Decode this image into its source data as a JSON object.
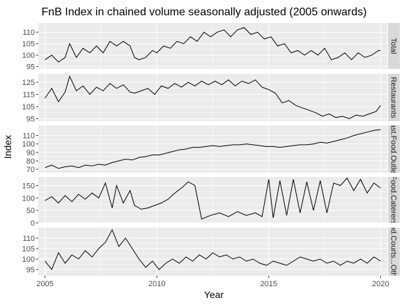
{
  "chart_data": {
    "type": "line",
    "title": "FnB Index in chained volume seasonally adjusted (2005 onwards)",
    "xlabel": "Year",
    "ylabel": "Index",
    "xlim": [
      2004.7,
      2020.3
    ],
    "x_ticks": [
      2005,
      2010,
      2015,
      2020
    ],
    "grid": true,
    "facet_layout": "stacked rows, shared x axis, strip labels on right",
    "colors": {
      "panel_bg": "#ebebeb",
      "strip_bg": "#d9d9d9",
      "grid_major": "#ffffff",
      "line": "#000000"
    },
    "panels": [
      {
        "strip": "Total",
        "ylim": [
          94,
          114
        ],
        "y_ticks": [
          95,
          100,
          105,
          110
        ],
        "points": [
          [
            2005.0,
            98
          ],
          [
            2005.3,
            100
          ],
          [
            2005.6,
            97
          ],
          [
            2005.9,
            99
          ],
          [
            2006.1,
            105
          ],
          [
            2006.4,
            99
          ],
          [
            2006.7,
            103
          ],
          [
            2007.0,
            101
          ],
          [
            2007.3,
            104
          ],
          [
            2007.6,
            101
          ],
          [
            2007.9,
            106
          ],
          [
            2008.2,
            104
          ],
          [
            2008.5,
            106
          ],
          [
            2008.8,
            104
          ],
          [
            2009.0,
            99
          ],
          [
            2009.2,
            98
          ],
          [
            2009.5,
            99
          ],
          [
            2009.8,
            102
          ],
          [
            2010.0,
            101
          ],
          [
            2010.3,
            104
          ],
          [
            2010.6,
            103
          ],
          [
            2010.9,
            106
          ],
          [
            2011.2,
            105
          ],
          [
            2011.5,
            108
          ],
          [
            2011.8,
            106
          ],
          [
            2012.1,
            110
          ],
          [
            2012.4,
            108
          ],
          [
            2012.7,
            110
          ],
          [
            2013.0,
            111
          ],
          [
            2013.3,
            108
          ],
          [
            2013.6,
            111
          ],
          [
            2013.9,
            112
          ],
          [
            2014.2,
            109
          ],
          [
            2014.5,
            110
          ],
          [
            2014.8,
            107
          ],
          [
            2015.1,
            108
          ],
          [
            2015.4,
            104
          ],
          [
            2015.7,
            105
          ],
          [
            2016.0,
            101
          ],
          [
            2016.3,
            102
          ],
          [
            2016.6,
            100
          ],
          [
            2016.9,
            102
          ],
          [
            2017.2,
            100
          ],
          [
            2017.5,
            103
          ],
          [
            2017.8,
            98
          ],
          [
            2018.1,
            99
          ],
          [
            2018.4,
            101
          ],
          [
            2018.7,
            98
          ],
          [
            2019.0,
            101
          ],
          [
            2019.3,
            99
          ],
          [
            2019.6,
            100
          ],
          [
            2019.9,
            102
          ],
          [
            2020.0,
            102
          ]
        ]
      },
      {
        "strip": "Restaurants",
        "ylim": [
          93,
          132
        ],
        "y_ticks": [
          95,
          105,
          115,
          125
        ],
        "points": [
          [
            2005.0,
            112
          ],
          [
            2005.3,
            120
          ],
          [
            2005.6,
            109
          ],
          [
            2005.9,
            117
          ],
          [
            2006.1,
            130
          ],
          [
            2006.4,
            118
          ],
          [
            2006.7,
            122
          ],
          [
            2007.0,
            115
          ],
          [
            2007.3,
            121
          ],
          [
            2007.6,
            118
          ],
          [
            2007.9,
            124
          ],
          [
            2008.2,
            120
          ],
          [
            2008.5,
            123
          ],
          [
            2008.8,
            117
          ],
          [
            2009.0,
            116
          ],
          [
            2009.3,
            118
          ],
          [
            2009.6,
            120
          ],
          [
            2009.9,
            115
          ],
          [
            2010.2,
            122
          ],
          [
            2010.5,
            120
          ],
          [
            2010.8,
            124
          ],
          [
            2011.1,
            121
          ],
          [
            2011.4,
            125
          ],
          [
            2011.7,
            122
          ],
          [
            2012.0,
            126
          ],
          [
            2012.3,
            123
          ],
          [
            2012.6,
            126
          ],
          [
            2012.9,
            123
          ],
          [
            2013.2,
            127
          ],
          [
            2013.5,
            122
          ],
          [
            2013.8,
            126
          ],
          [
            2014.1,
            124
          ],
          [
            2014.4,
            127
          ],
          [
            2014.7,
            121
          ],
          [
            2015.0,
            119
          ],
          [
            2015.3,
            116
          ],
          [
            2015.6,
            108
          ],
          [
            2015.9,
            110
          ],
          [
            2016.2,
            106
          ],
          [
            2016.5,
            104
          ],
          [
            2016.8,
            102
          ],
          [
            2017.1,
            100
          ],
          [
            2017.4,
            97
          ],
          [
            2017.7,
            99
          ],
          [
            2018.0,
            96
          ],
          [
            2018.3,
            97
          ],
          [
            2018.6,
            95
          ],
          [
            2018.9,
            98
          ],
          [
            2019.2,
            97
          ],
          [
            2019.5,
            99
          ],
          [
            2019.8,
            101
          ],
          [
            2020.0,
            106
          ]
        ]
      },
      {
        "strip": "Fast.Food.Outlets",
        "ylim": [
          66,
          122
        ],
        "y_ticks": [
          70,
          80,
          90,
          100,
          110
        ],
        "points": [
          [
            2005.0,
            72
          ],
          [
            2005.3,
            75
          ],
          [
            2005.6,
            71
          ],
          [
            2005.9,
            73
          ],
          [
            2006.2,
            74
          ],
          [
            2006.5,
            72
          ],
          [
            2006.8,
            75
          ],
          [
            2007.1,
            74
          ],
          [
            2007.4,
            76
          ],
          [
            2007.7,
            75
          ],
          [
            2008.0,
            78
          ],
          [
            2008.3,
            80
          ],
          [
            2008.6,
            82
          ],
          [
            2008.9,
            81
          ],
          [
            2009.2,
            84
          ],
          [
            2009.5,
            85
          ],
          [
            2009.8,
            87
          ],
          [
            2010.1,
            87
          ],
          [
            2010.4,
            89
          ],
          [
            2010.7,
            91
          ],
          [
            2011.0,
            93
          ],
          [
            2011.3,
            94
          ],
          [
            2011.6,
            96
          ],
          [
            2011.9,
            96
          ],
          [
            2012.2,
            97
          ],
          [
            2012.5,
            98
          ],
          [
            2012.8,
            97
          ],
          [
            2013.1,
            98
          ],
          [
            2013.4,
            99
          ],
          [
            2013.7,
            99
          ],
          [
            2014.0,
            100
          ],
          [
            2014.3,
            99
          ],
          [
            2014.6,
            98
          ],
          [
            2014.9,
            97
          ],
          [
            2015.2,
            97
          ],
          [
            2015.5,
            96
          ],
          [
            2015.8,
            97
          ],
          [
            2016.1,
            98
          ],
          [
            2016.4,
            99
          ],
          [
            2016.7,
            99
          ],
          [
            2017.0,
            100
          ],
          [
            2017.3,
            102
          ],
          [
            2017.6,
            101
          ],
          [
            2017.9,
            103
          ],
          [
            2018.2,
            105
          ],
          [
            2018.5,
            107
          ],
          [
            2018.8,
            110
          ],
          [
            2019.1,
            112
          ],
          [
            2019.4,
            114
          ],
          [
            2019.7,
            116
          ],
          [
            2020.0,
            117
          ]
        ]
      },
      {
        "strip": "Food.Caterers",
        "ylim": [
          0,
          185
        ],
        "y_ticks": [
          0,
          50,
          100,
          150
        ],
        "points": [
          [
            2005.0,
            90
          ],
          [
            2005.3,
            105
          ],
          [
            2005.6,
            80
          ],
          [
            2005.9,
            110
          ],
          [
            2006.2,
            85
          ],
          [
            2006.5,
            115
          ],
          [
            2006.8,
            95
          ],
          [
            2007.1,
            120
          ],
          [
            2007.4,
            100
          ],
          [
            2007.7,
            160
          ],
          [
            2008.0,
            60
          ],
          [
            2008.2,
            150
          ],
          [
            2008.5,
            80
          ],
          [
            2008.8,
            130
          ],
          [
            2009.0,
            70
          ],
          [
            2009.3,
            55
          ],
          [
            2009.6,
            60
          ],
          [
            2009.9,
            70
          ],
          [
            2010.2,
            80
          ],
          [
            2010.5,
            95
          ],
          [
            2010.8,
            120
          ],
          [
            2011.1,
            140
          ],
          [
            2011.4,
            165
          ],
          [
            2011.7,
            150
          ],
          [
            2011.9,
            60
          ],
          [
            2012.0,
            15
          ],
          [
            2012.4,
            30
          ],
          [
            2012.8,
            40
          ],
          [
            2013.2,
            25
          ],
          [
            2013.6,
            45
          ],
          [
            2014.0,
            30
          ],
          [
            2014.4,
            40
          ],
          [
            2014.7,
            25
          ],
          [
            2015.0,
            175
          ],
          [
            2015.2,
            20
          ],
          [
            2015.5,
            170
          ],
          [
            2015.8,
            30
          ],
          [
            2016.1,
            175
          ],
          [
            2016.4,
            40
          ],
          [
            2016.7,
            165
          ],
          [
            2017.0,
            50
          ],
          [
            2017.3,
            170
          ],
          [
            2017.6,
            40
          ],
          [
            2017.9,
            160
          ],
          [
            2018.2,
            150
          ],
          [
            2018.5,
            180
          ],
          [
            2018.8,
            130
          ],
          [
            2019.1,
            175
          ],
          [
            2019.4,
            120
          ],
          [
            2019.7,
            160
          ],
          [
            2020.0,
            140
          ]
        ]
      },
      {
        "strip": "Food.Courts...Others",
        "ylim": [
          92,
          115
        ],
        "y_ticks": [
          95,
          100,
          105,
          110
        ],
        "points": [
          [
            2005.0,
            99
          ],
          [
            2005.3,
            95
          ],
          [
            2005.6,
            103
          ],
          [
            2005.9,
            98
          ],
          [
            2006.2,
            102
          ],
          [
            2006.5,
            100
          ],
          [
            2006.8,
            104
          ],
          [
            2007.1,
            101
          ],
          [
            2007.4,
            105
          ],
          [
            2007.7,
            108
          ],
          [
            2008.0,
            114
          ],
          [
            2008.3,
            106
          ],
          [
            2008.6,
            110
          ],
          [
            2008.9,
            105
          ],
          [
            2009.2,
            100
          ],
          [
            2009.5,
            96
          ],
          [
            2009.8,
            99
          ],
          [
            2010.1,
            95
          ],
          [
            2010.4,
            98
          ],
          [
            2010.7,
            100
          ],
          [
            2011.0,
            98
          ],
          [
            2011.3,
            101
          ],
          [
            2011.6,
            99
          ],
          [
            2011.9,
            102
          ],
          [
            2012.2,
            100
          ],
          [
            2012.5,
            103
          ],
          [
            2012.8,
            101
          ],
          [
            2013.1,
            102
          ],
          [
            2013.4,
            100
          ],
          [
            2013.7,
            101
          ],
          [
            2014.0,
            99
          ],
          [
            2014.3,
            100
          ],
          [
            2014.6,
            98
          ],
          [
            2014.9,
            97
          ],
          [
            2015.2,
            99
          ],
          [
            2015.5,
            98
          ],
          [
            2015.8,
            97
          ],
          [
            2016.1,
            99
          ],
          [
            2016.4,
            101
          ],
          [
            2016.7,
            100
          ],
          [
            2017.0,
            99
          ],
          [
            2017.3,
            100
          ],
          [
            2017.6,
            98
          ],
          [
            2017.9,
            99
          ],
          [
            2018.2,
            97
          ],
          [
            2018.5,
            99
          ],
          [
            2018.8,
            98
          ],
          [
            2019.1,
            100
          ],
          [
            2019.4,
            98
          ],
          [
            2019.7,
            101
          ],
          [
            2020.0,
            99
          ]
        ]
      }
    ]
  }
}
